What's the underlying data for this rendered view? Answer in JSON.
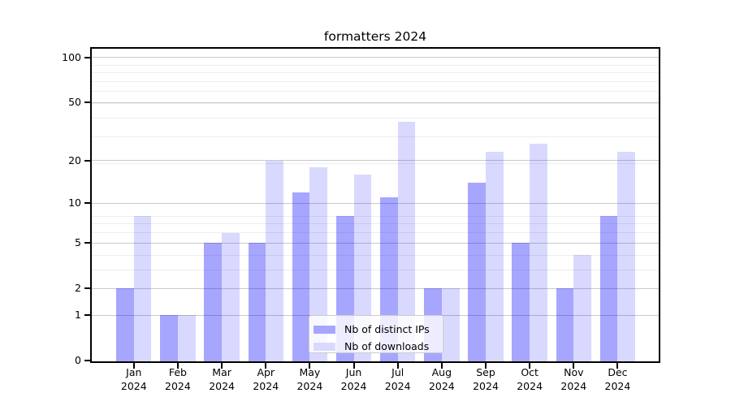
{
  "title": "formatters 2024",
  "colors": {
    "ips_bar": "rgba(0,0,255,0.35)",
    "downloads_bar": "rgba(0,0,255,0.15)",
    "ips_solid": "#a6a6ff",
    "downloads_solid": "#d9d9ff",
    "grid_major": "#c9c9c9",
    "grid_minor": "#ededed",
    "axis": "#000000"
  },
  "legend": {
    "items": [
      {
        "label": "Nb of distinct IPs",
        "color_key": "ips_bar"
      },
      {
        "label": "Nb of downloads",
        "color_key": "downloads_bar"
      }
    ],
    "position": "lower center inside plot"
  },
  "chart_data": {
    "type": "bar",
    "title": "formatters 2024",
    "categories": [
      "Jan",
      "Feb",
      "Mar",
      "Apr",
      "May",
      "Jun",
      "Jul",
      "Aug",
      "Sep",
      "Oct",
      "Nov",
      "Dec"
    ],
    "year": "2024",
    "series": [
      {
        "name": "Nb of distinct IPs",
        "values": [
          2,
          1,
          5,
          5,
          12,
          8,
          11,
          2,
          14,
          5,
          2,
          8
        ]
      },
      {
        "name": "Nb of downloads",
        "values": [
          8,
          1,
          6,
          20,
          18,
          16,
          37,
          2,
          23,
          26,
          4,
          23
        ]
      }
    ],
    "xlabel": "",
    "ylabel": "",
    "yscale": "log(value+1)",
    "y_ticks": [
      0,
      1,
      2,
      5,
      10,
      20,
      50,
      100
    ],
    "y_minor_gridline_values": [
      3,
      4,
      6,
      7,
      8,
      19,
      29,
      39,
      49,
      59,
      69,
      79,
      89
    ],
    "ylim": [
      0,
      114
    ],
    "grid": "on",
    "legend_position": "bottom-center"
  }
}
